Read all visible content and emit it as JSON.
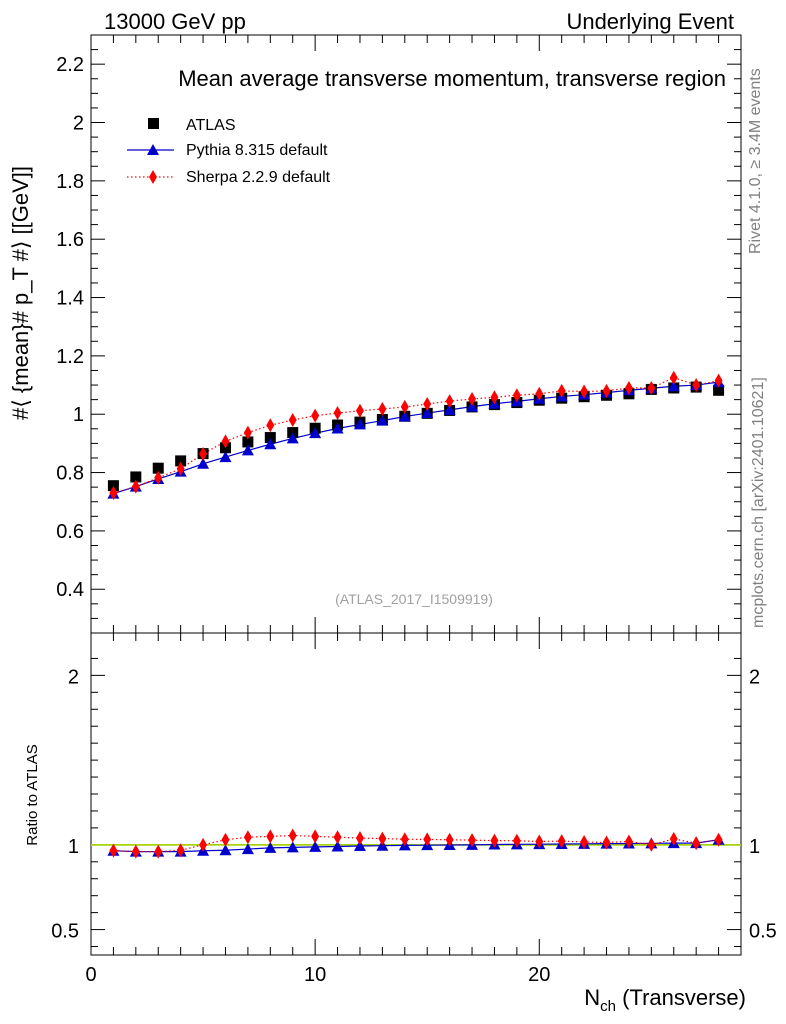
{
  "header": {
    "left": "13000 GeV pp",
    "right": "Underlying Event"
  },
  "side_labels": {
    "top": "Rivet 4.1.0, ≥ 3.4M events",
    "bottom": "mcplots.cern.ch [arXiv:2401.10621]"
  },
  "colors": {
    "data": "#000000",
    "pythia": "#0000cc",
    "sherpa": "#ff0000",
    "ref_line": "#99cc00"
  },
  "chart_data": [
    {
      "type": "scatter",
      "title": "Mean average transverse momentum, transverse region",
      "xlabel": "N_ch (Transverse)",
      "ylabel": "#⟨ {mean}# p_T #⟩ [[GeV]]",
      "xlim": [
        0,
        29
      ],
      "ylim": [
        0.25,
        2.3
      ],
      "yticks": [
        "0.4",
        "0.6",
        "0.8",
        "1",
        "1.2",
        "1.4",
        "1.6",
        "1.8",
        "2",
        "2.2"
      ],
      "ytick_values": [
        0.4,
        0.6,
        0.8,
        1.0,
        1.2,
        1.4,
        1.6,
        1.8,
        2.0,
        2.2
      ],
      "reference": "(ATLAS_2017_I1509919)",
      "x": [
        1,
        2,
        3,
        4,
        5,
        6,
        7,
        8,
        9,
        10,
        11,
        12,
        13,
        14,
        15,
        16,
        17,
        18,
        19,
        20,
        21,
        22,
        23,
        24,
        25,
        26,
        27,
        28
      ],
      "series": [
        {
          "name": "ATLAS",
          "marker": "square",
          "values": [
            0.755,
            0.785,
            0.815,
            0.84,
            0.865,
            0.885,
            0.905,
            0.92,
            0.937,
            0.952,
            0.963,
            0.973,
            0.982,
            0.993,
            1.003,
            1.013,
            1.025,
            1.033,
            1.04,
            1.048,
            1.055,
            1.06,
            1.065,
            1.07,
            1.085,
            1.09,
            1.093,
            1.082
          ]
        },
        {
          "name": "Pythia 8.315 default",
          "marker": "triangle",
          "line": "solid",
          "values": [
            0.728,
            0.752,
            0.778,
            0.803,
            0.83,
            0.853,
            0.876,
            0.897,
            0.917,
            0.935,
            0.951,
            0.965,
            0.978,
            0.992,
            1.004,
            1.015,
            1.026,
            1.036,
            1.044,
            1.053,
            1.061,
            1.067,
            1.074,
            1.082,
            1.089,
            1.096,
            1.1,
            1.11
          ]
        },
        {
          "name": "Sherpa 2.2.9 default",
          "marker": "diamond",
          "line": "dotted",
          "values": [
            0.73,
            0.752,
            0.782,
            0.813,
            0.864,
            0.907,
            0.937,
            0.962,
            0.98,
            0.995,
            1.004,
            1.012,
            1.018,
            1.025,
            1.035,
            1.045,
            1.052,
            1.058,
            1.065,
            1.07,
            1.08,
            1.078,
            1.08,
            1.09,
            1.09,
            1.125,
            1.1,
            1.115
          ]
        }
      ]
    },
    {
      "type": "scatter",
      "title": "",
      "xlabel": "N_ch (Transverse)",
      "ylabel": "Ratio to ATLAS",
      "xlim": [
        0,
        29
      ],
      "ylim": [
        0.35,
        2.25
      ],
      "yticks": [
        "0.5",
        "1",
        "2"
      ],
      "ytick_values": [
        0.5,
        1,
        2
      ],
      "xticks": [
        "0",
        "10",
        "20"
      ],
      "xtick_values": [
        0,
        10,
        20
      ],
      "reference_value": 1.0,
      "series": [
        {
          "name": "Pythia 8.315 default",
          "values": [
            0.965,
            0.96,
            0.96,
            0.96,
            0.965,
            0.968,
            0.975,
            0.982,
            0.985,
            0.988,
            0.99,
            0.993,
            0.995,
            0.997,
            0.998,
            0.999,
            1.0,
            1.002,
            1.003,
            1.004,
            1.005,
            1.006,
            1.007,
            1.008,
            1.009,
            1.01,
            1.01,
            1.03
          ]
        },
        {
          "name": "Sherpa 2.2.9 default",
          "values": [
            0.966,
            0.96,
            0.96,
            0.968,
            1.0,
            1.03,
            1.045,
            1.05,
            1.055,
            1.05,
            1.045,
            1.04,
            1.037,
            1.033,
            1.032,
            1.03,
            1.028,
            1.025,
            1.024,
            1.02,
            1.022,
            1.017,
            1.014,
            1.02,
            1.0,
            1.035,
            1.01,
            1.03
          ]
        }
      ]
    }
  ]
}
